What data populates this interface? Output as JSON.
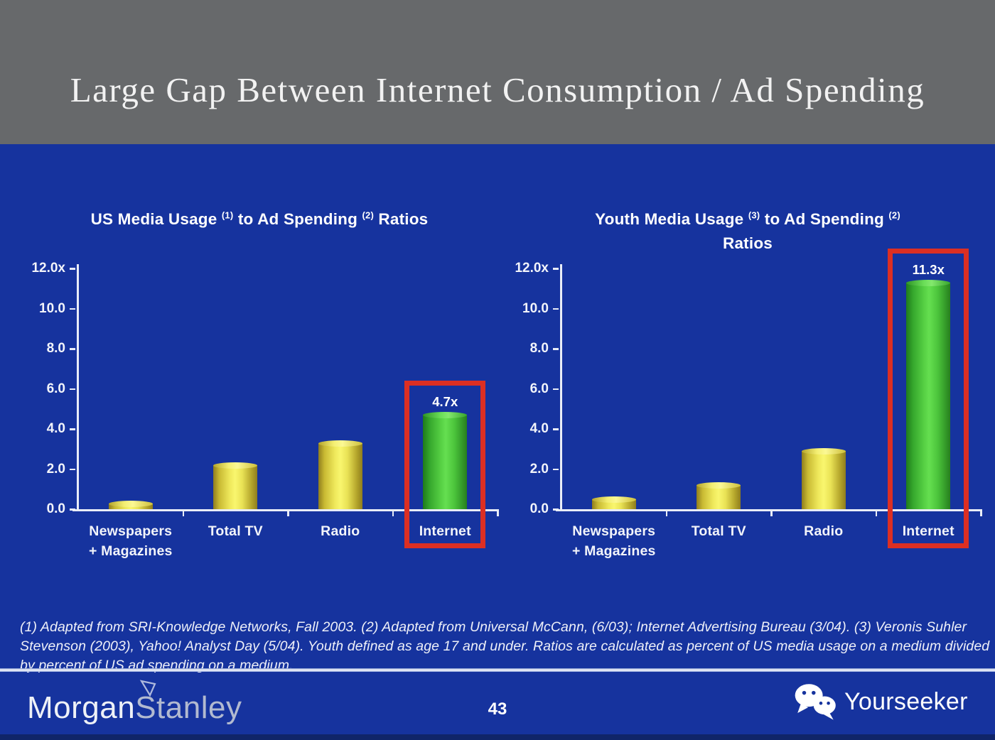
{
  "header": {
    "title": "Large Gap Between Internet Consumption / Ad Spending"
  },
  "chart_data": [
    {
      "type": "bar",
      "title": "US Media Usage (1) to Ad Spending (2) Ratios",
      "title_segments": [
        "US Media Usage ",
        "^(1)",
        " to Ad Spending ",
        "^(2)",
        " Ratios"
      ],
      "title_line2": null,
      "categories": [
        [
          "Newspapers",
          "+ Magazines"
        ],
        [
          "Total TV"
        ],
        [
          "Radio"
        ],
        [
          "Internet"
        ]
      ],
      "values": [
        0.3,
        2.2,
        3.3,
        4.7
      ],
      "ylim": [
        0,
        12
      ],
      "ytick_labels": [
        {
          "v": 12,
          "label": "12.0x"
        },
        {
          "v": 10,
          "label": "10.0"
        },
        {
          "v": 8,
          "label": "8.0"
        },
        {
          "v": 6,
          "label": "6.0"
        },
        {
          "v": 4,
          "label": "4.0"
        },
        {
          "v": 2,
          "label": "2.0"
        },
        {
          "v": 0,
          "label": "0.0"
        }
      ],
      "grid": false,
      "legend": null,
      "highlight": {
        "index": 3,
        "label": "4.7x"
      }
    },
    {
      "type": "bar",
      "title": "Youth Media Usage (3) to Ad Spending (2) Ratios",
      "title_segments": [
        "Youth Media Usage ",
        "^(3)",
        " to Ad Spending ",
        "^(2)"
      ],
      "title_line2": "Ratios",
      "categories": [
        [
          "Newspapers",
          "+ Magazines"
        ],
        [
          "Total TV"
        ],
        [
          "Radio"
        ],
        [
          "Internet"
        ]
      ],
      "values": [
        0.5,
        1.2,
        2.9,
        11.3
      ],
      "ylim": [
        0,
        12
      ],
      "ytick_labels": [
        {
          "v": 12,
          "label": "12.0x"
        },
        {
          "v": 10,
          "label": "10.0"
        },
        {
          "v": 8,
          "label": "8.0"
        },
        {
          "v": 6,
          "label": "6.0"
        },
        {
          "v": 4,
          "label": "4.0"
        },
        {
          "v": 2,
          "label": "2.0"
        },
        {
          "v": 0,
          "label": "0.0"
        }
      ],
      "grid": false,
      "legend": null,
      "highlight": {
        "index": 3,
        "label": "11.3x"
      }
    }
  ],
  "footnote_lines": [
    "(1) Adapted from SRI-Knowledge Networks, Fall 2003.  (2) Adapted from Universal McCann, (6/03); Internet Advertising Bureau (3/04). (3) Veronis Suhler",
    "Stevenson (2003), Yahoo! Analyst Day (5/04).  Youth defined as age 17 and under.  Ratios are calculated as percent of US media usage on a medium divided",
    "by percent of US ad spending on a medium."
  ],
  "footer": {
    "brand_morgan": "Morgan",
    "brand_stanley": "Stanley",
    "page_number": "43",
    "brand_right": "Yourseeker"
  },
  "colors": {
    "header_bg": "#67696b",
    "slide_bg": "#16339e",
    "title_text": "#f2f2f2",
    "chart_text": "#ffffff",
    "axis": "#e9edf7",
    "bar_yellow_center": "#f9f66e",
    "bar_yellow_edge": "#8f7d1e",
    "bar_green_center": "#65df50",
    "bar_green_edge": "#1f7a1b",
    "highlight_box": "#dc2f23",
    "morgan_stanley_primary": "#eef1f7",
    "morgan_stanley_secondary": "#b2bad0"
  }
}
